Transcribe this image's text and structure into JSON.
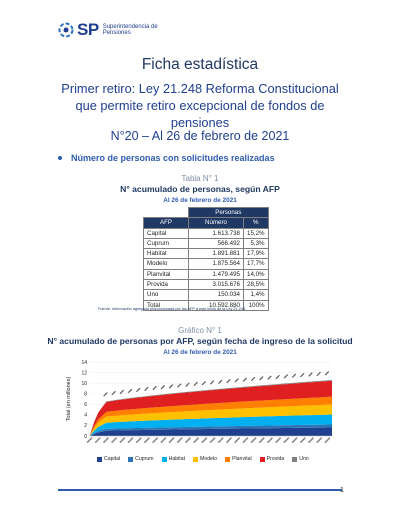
{
  "header": {
    "logo_sp": "SP",
    "logo_line1": "Superintendencia de",
    "logo_line2": "Pensiones"
  },
  "doc": {
    "title": "Ficha estadística",
    "subtitle": "Primer retiro: Ley 21.248 Reforma Constitucional que permite retiro excepcional de fondos de pensiones",
    "date_line": "N°20 – Al 26 de febrero de 2021"
  },
  "section": {
    "bullet": "Número de personas con solicitudes realizadas"
  },
  "table1": {
    "label": "Tabla N° 1",
    "title": "N° acumulado de personas, según AFP",
    "date": "Al 26 de febrero de 2021",
    "group_header": "Personas",
    "headers": [
      "AFP",
      "Número",
      "%"
    ],
    "rows": [
      {
        "afp": "Capital",
        "numero": "1.613.738",
        "pct": "15,2%"
      },
      {
        "afp": "Cuprum",
        "numero": "566.492",
        "pct": "5,3%"
      },
      {
        "afp": "Habitat",
        "numero": "1.891.881",
        "pct": "17,9%"
      },
      {
        "afp": "Modelo",
        "numero": "1.875.564",
        "pct": "17,7%"
      },
      {
        "afp": "Planvital",
        "numero": "1.479.495",
        "pct": "14,0%"
      },
      {
        "afp": "Provida",
        "numero": "3.015.676",
        "pct": "28,5%"
      },
      {
        "afp": "Uno",
        "numero": "150.034",
        "pct": "1,4%"
      },
      {
        "afp": "Total",
        "numero": "10.592.880",
        "pct": "100%"
      }
    ],
    "source": "Fuente: Información agregada proporcionada por las AFP a este inicio de la Ley 21.248."
  },
  "chart1": {
    "label": "Gráfico N° 1",
    "title": "N° acumulado de personas por AFP, según fecha de ingreso de la solicitud",
    "date": "Al 26 de febrero de 2021"
  },
  "colors": {
    "Capital": "#1f3f8f",
    "Cuprum": "#2e75b6",
    "Habitat": "#00b0f0",
    "Modelo": "#ffc000",
    "Planvital": "#ff7f00",
    "Provida": "#e02020",
    "Uno": "#7f7f7f"
  },
  "chart_data": {
    "type": "area",
    "stacked": true,
    "ylabel": "Total (en millones)",
    "ylim": [
      0,
      14
    ],
    "yticks": [
      0,
      2,
      4,
      6,
      8,
      10,
      12,
      14
    ],
    "n_points": 60,
    "legend_position": "bottom",
    "series": [
      {
        "name": "Capital",
        "final": 1.61
      },
      {
        "name": "Cuprum",
        "final": 0.57
      },
      {
        "name": "Habitat",
        "final": 1.89
      },
      {
        "name": "Modelo",
        "final": 1.88
      },
      {
        "name": "Planvital",
        "final": 1.48
      },
      {
        "name": "Provida",
        "final": 3.02
      },
      {
        "name": "Uno",
        "final": 0.15
      }
    ],
    "total_final": 10.59
  },
  "page": {
    "number": "1"
  }
}
